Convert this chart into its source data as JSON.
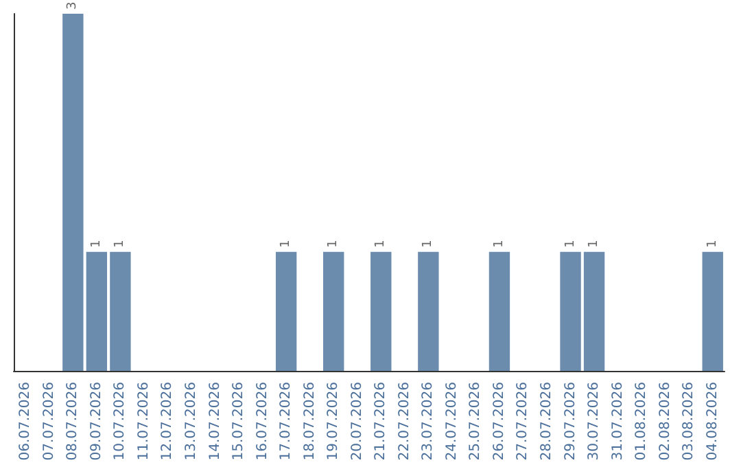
{
  "chart_data": {
    "type": "bar",
    "categories": [
      "06.07.2026",
      "07.07.2026",
      "08.07.2026",
      "09.07.2026",
      "10.07.2026",
      "11.07.2026",
      "12.07.2026",
      "13.07.2026",
      "14.07.2026",
      "15.07.2026",
      "16.07.2026",
      "17.07.2026",
      "18.07.2026",
      "19.07.2026",
      "20.07.2026",
      "21.07.2026",
      "22.07.2026",
      "23.07.2026",
      "24.07.2026",
      "25.07.2026",
      "26.07.2026",
      "27.07.2026",
      "28.07.2026",
      "29.07.2026",
      "30.07.2026",
      "31.07.2026",
      "01.08.2026",
      "02.08.2026",
      "03.08.2026",
      "04.08.2026"
    ],
    "values": [
      0,
      0,
      3,
      1,
      1,
      0,
      0,
      0,
      0,
      0,
      0,
      1,
      0,
      1,
      0,
      1,
      0,
      1,
      0,
      0,
      1,
      0,
      0,
      1,
      1,
      0,
      0,
      0,
      0,
      1
    ],
    "value_labels": [
      null,
      null,
      "3",
      "1",
      "1",
      null,
      null,
      null,
      null,
      null,
      null,
      "1",
      null,
      "1",
      null,
      "1",
      null,
      "1",
      null,
      null,
      "1",
      null,
      null,
      "1",
      "1",
      null,
      null,
      null,
      null,
      "1"
    ],
    "color": "#6b8cac",
    "tick_labels": "x",
    "grid": false
  }
}
